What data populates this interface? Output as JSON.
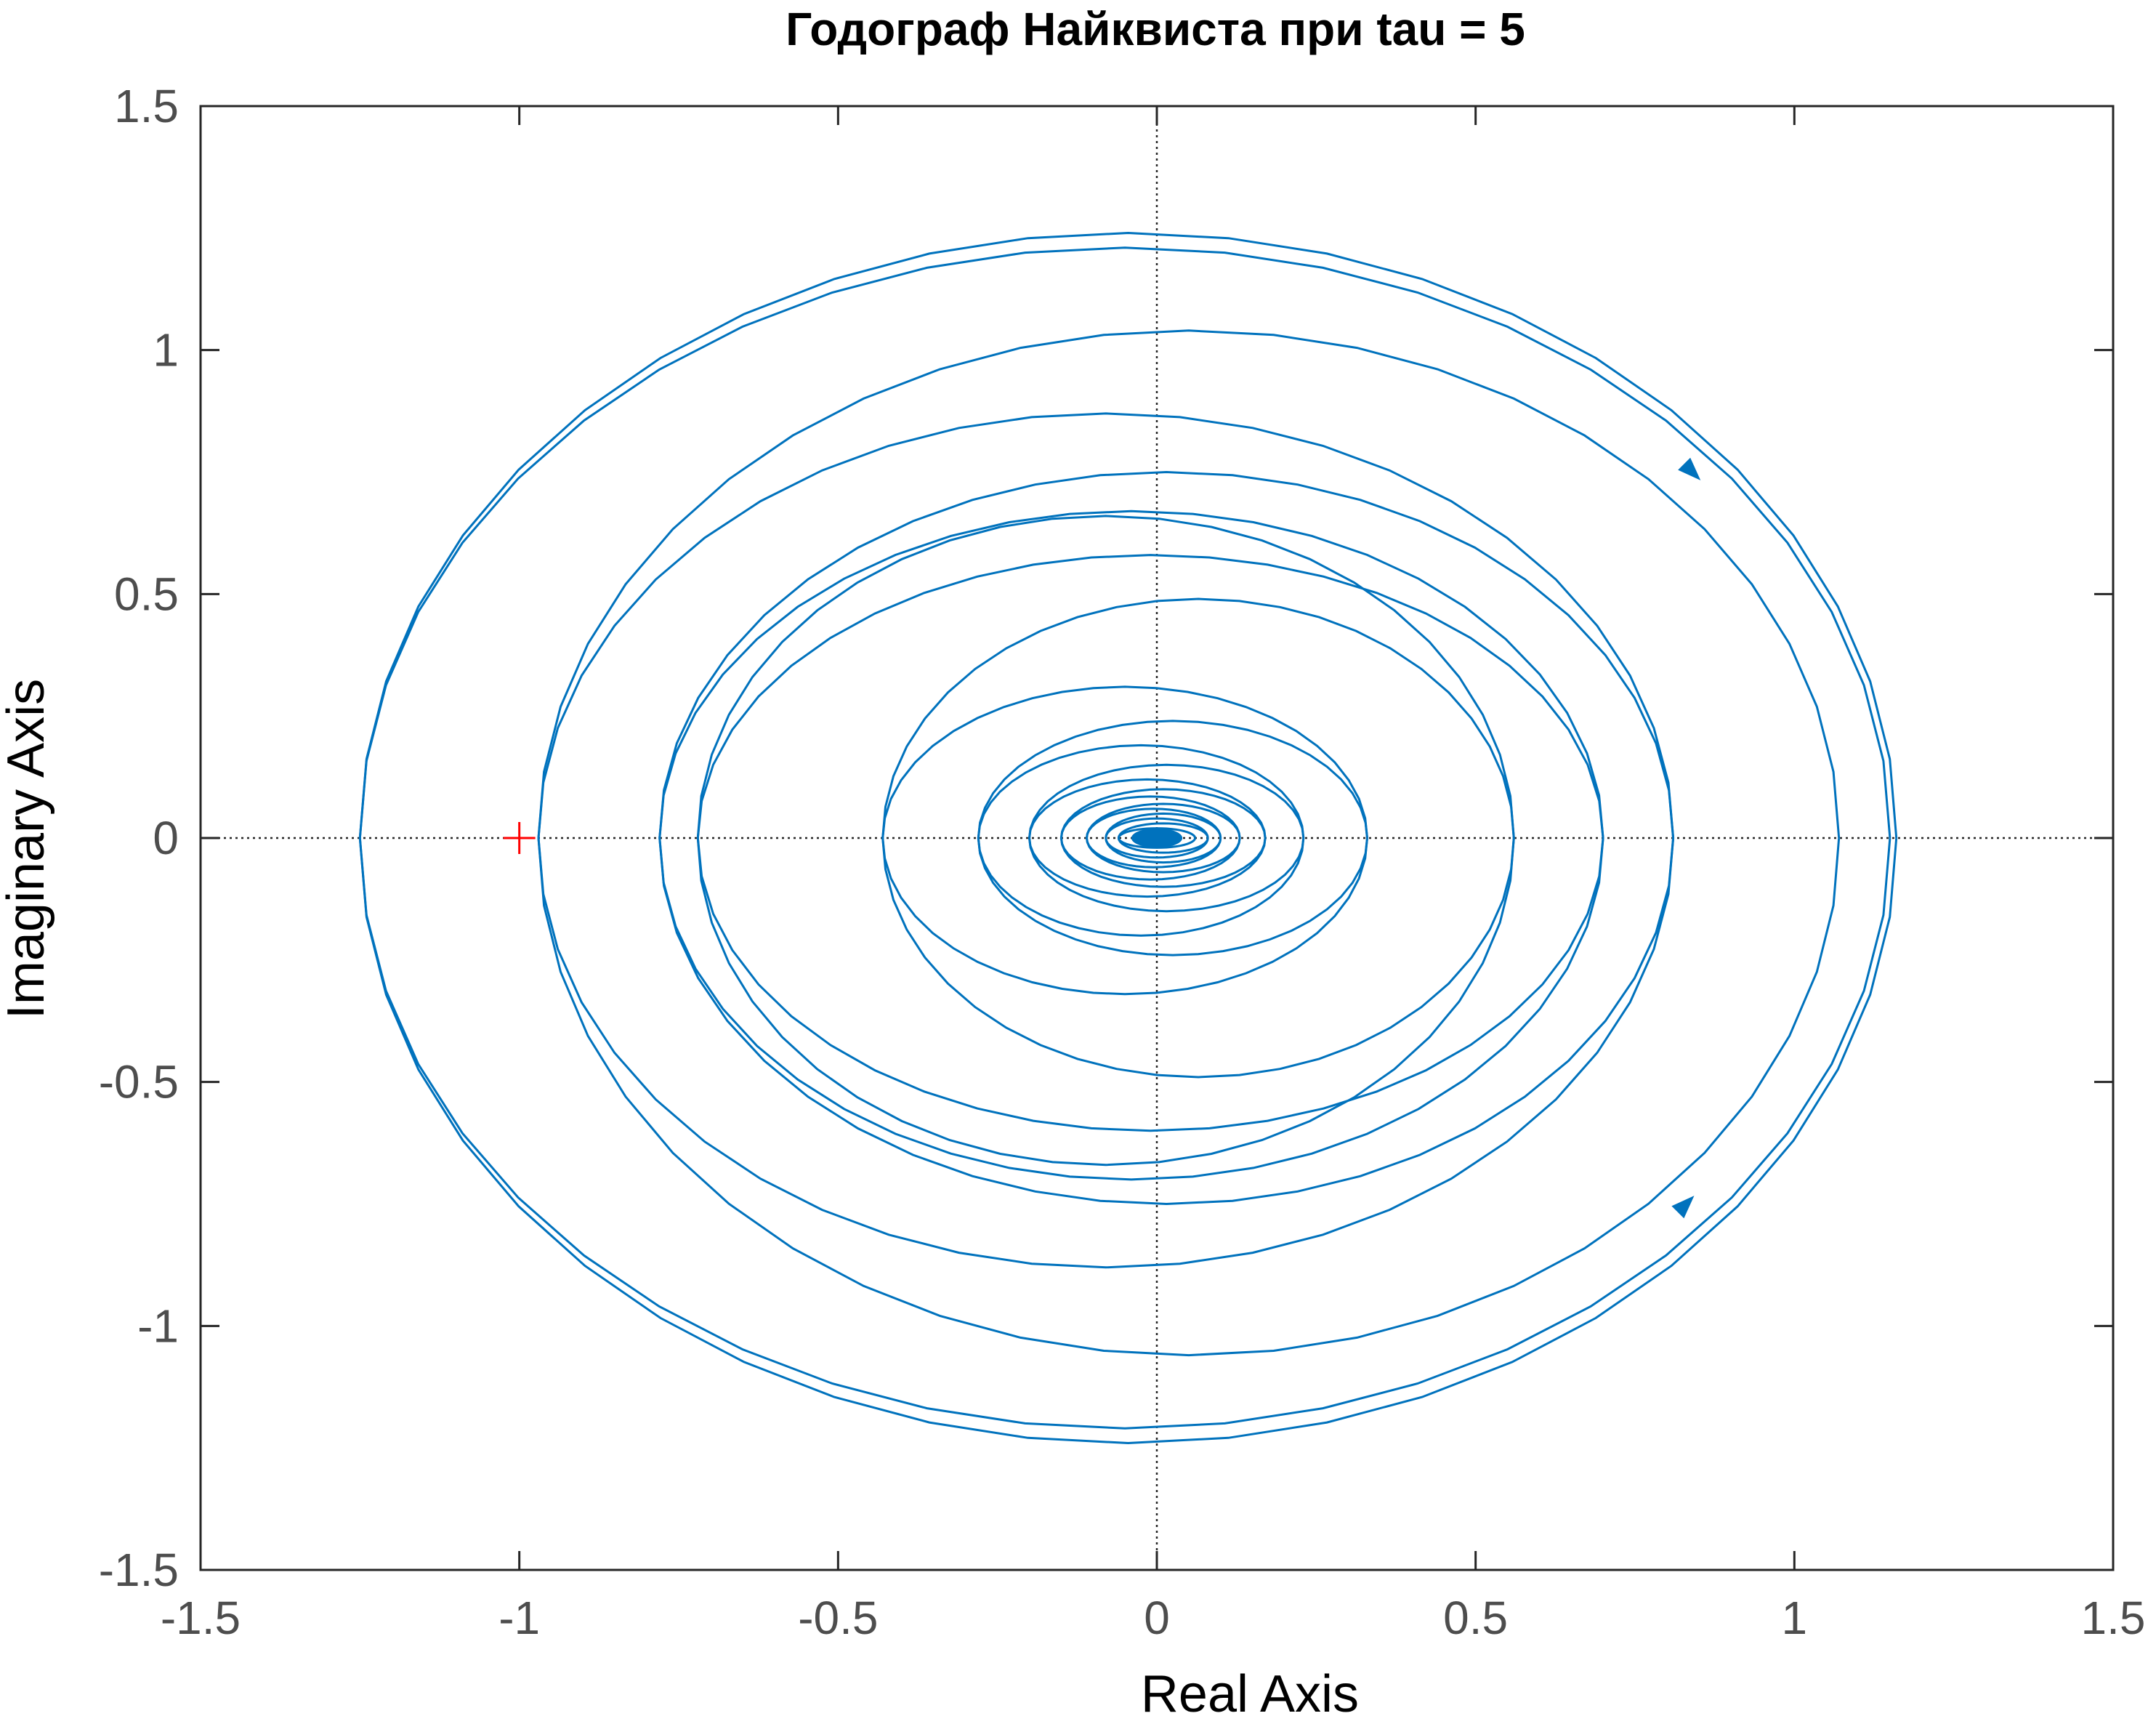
{
  "chart_data": {
    "type": "line",
    "title": "Годограф Найквиста при tau = 5",
    "xlabel": "Real Axis",
    "ylabel": "Imaginary Axis",
    "xlim": [
      -1.5,
      1.5
    ],
    "ylim": [
      -1.5,
      1.5
    ],
    "xticks": [
      -1.5,
      -1,
      -0.5,
      0,
      0.5,
      1,
      1.5
    ],
    "xtick_labels": [
      "-1.5",
      "-1",
      "-0.5",
      "0",
      "0.5",
      "1",
      "1.5"
    ],
    "yticks": [
      -1.5,
      -1,
      -0.5,
      0,
      0.5,
      1,
      1.5
    ],
    "ytick_labels": [
      "-1.5",
      "-1",
      "-0.5",
      "0",
      "0.5",
      "1",
      "1.5"
    ],
    "grid": false,
    "zero_lines": true,
    "series": [
      {
        "color": "#0072bd",
        "description_points": [
          {
            "x": 1.16,
            "y": 0.0
          },
          {
            "x": -1.25,
            "y": 0.0
          },
          {
            "x": 0.0,
            "y": 1.24
          },
          {
            "x": 0.0,
            "y": -1.24
          },
          {
            "x": 1.07,
            "y": 0.0
          },
          {
            "x": -0.97,
            "y": 0.0
          },
          {
            "x": 0.81,
            "y": 0.0
          },
          {
            "x": -0.78,
            "y": 0.0
          },
          {
            "x": 0.7,
            "y": 0.0
          },
          {
            "x": -0.72,
            "y": 0.0
          },
          {
            "x": 0.56,
            "y": 0.0
          },
          {
            "x": -0.43,
            "y": 0.0
          },
          {
            "x": 0.33,
            "y": 0.0
          },
          {
            "x": -0.28,
            "y": 0.0
          },
          {
            "x": 0.23,
            "y": 0.0
          },
          {
            "x": -0.2,
            "y": 0.0
          }
        ],
        "rings": [
          {
            "x_right": 1.16,
            "x_left": -1.25,
            "y_top": 1.24,
            "y_bottom": -1.24,
            "cx": -0.04
          },
          {
            "x_right": 1.15,
            "x_left": -1.25,
            "y_top": 1.21,
            "y_bottom": -1.21,
            "cx": -0.05
          },
          {
            "x_right": 1.07,
            "x_left": -0.97,
            "y_top": 1.04,
            "y_bottom": -1.06,
            "cx": 0.05
          },
          {
            "x_right": 0.81,
            "x_left": -0.97,
            "y_top": 0.87,
            "y_bottom": -0.88,
            "cx": -0.08
          },
          {
            "x_right": 0.81,
            "x_left": -0.78,
            "y_top": 0.75,
            "y_bottom": -0.75,
            "cx": 0.01
          },
          {
            "x_right": 0.7,
            "x_left": -0.78,
            "y_top": 0.67,
            "y_bottom": -0.7,
            "cx": -0.04
          },
          {
            "x_right": 0.56,
            "x_left": -0.72,
            "y_top": 0.66,
            "y_bottom": -0.67,
            "cx": -0.06
          },
          {
            "x_right": 0.7,
            "x_left": -0.72,
            "y_top": 0.58,
            "y_bottom": -0.6,
            "cx": -0.02
          },
          {
            "x_right": 0.56,
            "x_left": -0.43,
            "y_top": 0.49,
            "y_bottom": -0.49,
            "cx": 0.06
          },
          {
            "x_right": 0.33,
            "x_left": -0.43,
            "y_top": 0.31,
            "y_bottom": -0.32,
            "cx": -0.05
          },
          {
            "x_right": 0.33,
            "x_left": -0.28,
            "y_top": 0.24,
            "y_bottom": -0.24,
            "cx": 0.02
          },
          {
            "x_right": 0.23,
            "x_left": -0.28,
            "y_top": 0.19,
            "y_bottom": -0.2,
            "cx": -0.02
          },
          {
            "x_right": 0.23,
            "x_left": -0.2,
            "y_top": 0.15,
            "y_bottom": -0.15,
            "cx": 0.01
          },
          {
            "x_right": 0.17,
            "x_left": -0.2,
            "y_top": 0.12,
            "y_bottom": -0.12,
            "cx": -0.01
          },
          {
            "x_right": 0.17,
            "x_left": -0.15,
            "y_top": 0.1,
            "y_bottom": -0.1,
            "cx": 0.01
          },
          {
            "x_right": 0.13,
            "x_left": -0.15,
            "y_top": 0.085,
            "y_bottom": -0.085,
            "cx": -0.01
          },
          {
            "x_right": 0.13,
            "x_left": -0.11,
            "y_top": 0.07,
            "y_bottom": -0.07,
            "cx": 0.01
          },
          {
            "x_right": 0.1,
            "x_left": -0.11,
            "y_top": 0.06,
            "y_bottom": -0.06,
            "cx": 0.0
          },
          {
            "x_right": 0.1,
            "x_left": -0.08,
            "y_top": 0.05,
            "y_bottom": -0.05,
            "cx": 0.01
          },
          {
            "x_right": 0.08,
            "x_left": -0.08,
            "y_top": 0.04,
            "y_bottom": -0.04,
            "cx": 0.0
          },
          {
            "x_right": 0.08,
            "x_left": -0.06,
            "y_top": 0.03,
            "y_bottom": -0.03,
            "cx": 0.01
          },
          {
            "x_right": 0.06,
            "x_left": -0.06,
            "y_top": 0.02,
            "y_bottom": -0.02,
            "cx": 0.0
          }
        ],
        "arrows": [
          {
            "x": 0.84,
            "y": 0.75,
            "direction": "down-right"
          },
          {
            "x": 0.83,
            "y": -0.75,
            "direction": "up-right"
          },
          {
            "x": 0.0,
            "y": 0.0,
            "direction": "right"
          }
        ]
      }
    ],
    "critical_point": {
      "x": -1,
      "y": 0,
      "marker": "+",
      "color": "#ff0000"
    }
  }
}
